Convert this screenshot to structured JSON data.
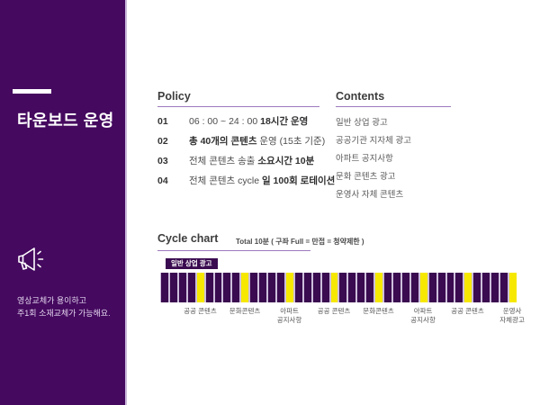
{
  "sidebar": {
    "title": "타운보드 운영",
    "caption_line1": "영상교체가 용이하고",
    "caption_line2": "주1회 소재교체가 가능해요.",
    "bg_color": "#45095f"
  },
  "policy": {
    "header": "Policy",
    "items": [
      {
        "num": "01",
        "pre": "06 : 00 ~ 24 : 00 ",
        "bold": "18시간 운영",
        "post": ""
      },
      {
        "num": "02",
        "pre": "",
        "bold": "총 40개의 콘텐츠",
        "post": " 운영 (15초 기준)"
      },
      {
        "num": "03",
        "pre": "전체 콘텐츠 송출 ",
        "bold": "소요시간 10분",
        "post": ""
      },
      {
        "num": "04",
        "pre": "전체 콘텐츠 cycle ",
        "bold": "일 100회 로테이션",
        "post": ""
      }
    ]
  },
  "contents": {
    "header": "Contents",
    "items": [
      "일반 상업 광고",
      "공공기관 지자체 광고",
      "아파트 공지사항",
      "문화 콘텐츠 광고",
      "운영사 자체 콘텐츠"
    ]
  },
  "cycle_chart": {
    "header": "Cycle chart",
    "subtitle": "Total 10분 ( 구좌 Full = 만접 = 청약제한 )",
    "tag_label": "일반 상업 광고"
  },
  "chart_data": {
    "type": "bar",
    "title": "Cycle chart",
    "subtitle": "Total 10분 ( 구좌 Full = 만접 = 청약제한 )",
    "total_slots": 40,
    "slot_duration_sec": 15,
    "general_slot_label": "일반 상업 광고",
    "special_slots": [
      {
        "position": 5,
        "label": "공공 콘텐츠"
      },
      {
        "position": 10,
        "label": "문화콘텐츠"
      },
      {
        "position": 15,
        "label": "아파트\n공지사항"
      },
      {
        "position": 20,
        "label": "공공 콘텐츠"
      },
      {
        "position": 25,
        "label": "문화콘텐츠"
      },
      {
        "position": 30,
        "label": "아파트\n공지사항"
      },
      {
        "position": 35,
        "label": "공공 콘텐츠"
      },
      {
        "position": 40,
        "label": "운영사\n자체광고"
      }
    ],
    "colors": {
      "general": "#3a0b50",
      "special": "#f6e800"
    },
    "legend_position": "top-left",
    "grid": false
  }
}
